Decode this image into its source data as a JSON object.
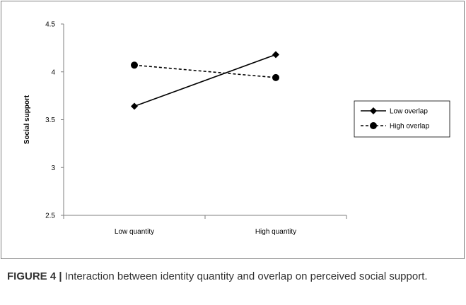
{
  "chart_data": {
    "type": "line",
    "categories": [
      "Low quantity",
      "High quantity"
    ],
    "series": [
      {
        "name": "Low overlap",
        "values": [
          3.64,
          4.18
        ],
        "line_style": "solid",
        "marker": "diamond",
        "color": "#000000"
      },
      {
        "name": "High overlap",
        "values": [
          4.07,
          3.94
        ],
        "line_style": "dashed",
        "marker": "circle",
        "color": "#000000"
      }
    ],
    "ylabel": "Social support",
    "xlabel": "",
    "ylim": [
      2.5,
      4.5
    ],
    "yticks": [
      "2.5",
      "3",
      "3.5",
      "4",
      "4.5"
    ],
    "grid": false,
    "legend_position": "right"
  },
  "caption": {
    "label": "FIGURE 4 |",
    "text": " Interaction between identity quantity and overlap on perceived social support."
  }
}
